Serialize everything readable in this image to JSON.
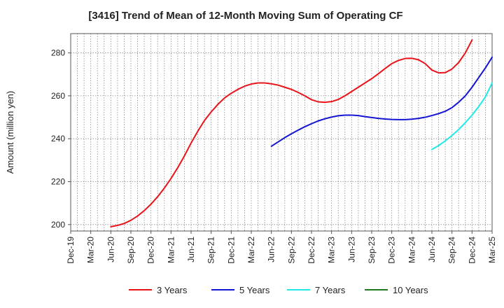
{
  "chart_data": {
    "type": "line",
    "title": "[3416]  Trend of Mean of 12-Month Moving Sum of Operating CF",
    "xlabel": "",
    "ylabel": "Amount (million yen)",
    "ylim": [
      197,
      289
    ],
    "yticks": [
      200,
      220,
      240,
      260,
      280
    ],
    "xticks": [
      "Dec-19",
      "Mar-20",
      "Jun-20",
      "Sep-20",
      "Dec-20",
      "Mar-21",
      "Jun-21",
      "Sep-21",
      "Dec-21",
      "Mar-22",
      "Jun-22",
      "Sep-22",
      "Dec-22",
      "Mar-23",
      "Jun-23",
      "Sep-23",
      "Dec-23",
      "Mar-24",
      "Jun-24",
      "Sep-24",
      "Dec-24",
      "Mar-25"
    ],
    "grid": true,
    "legend_position": "bottom",
    "series": [
      {
        "name": "3 Years",
        "color": "#e8141a",
        "points": [
          [
            6,
            199
          ],
          [
            7,
            199.6
          ],
          [
            8,
            200.5
          ],
          [
            9,
            202
          ],
          [
            10,
            204
          ],
          [
            11,
            206.5
          ],
          [
            12,
            209.5
          ],
          [
            13,
            213
          ],
          [
            14,
            217
          ],
          [
            15,
            221.5
          ],
          [
            16,
            226.5
          ],
          [
            17,
            232
          ],
          [
            18,
            238
          ],
          [
            19,
            243.5
          ],
          [
            20,
            248.5
          ],
          [
            21,
            252.5
          ],
          [
            22,
            256
          ],
          [
            23,
            259
          ],
          [
            24,
            261.2
          ],
          [
            25,
            263
          ],
          [
            26,
            264.5
          ],
          [
            27,
            265.5
          ],
          [
            28,
            266
          ],
          [
            29,
            266
          ],
          [
            30,
            265.6
          ],
          [
            31,
            265
          ],
          [
            32,
            264
          ],
          [
            33,
            263
          ],
          [
            34,
            261.6
          ],
          [
            35,
            260
          ],
          [
            36,
            258.2
          ],
          [
            37,
            257.2
          ],
          [
            38,
            257
          ],
          [
            39,
            257.3
          ],
          [
            40,
            258.3
          ],
          [
            41,
            260
          ],
          [
            42,
            262
          ],
          [
            43,
            264
          ],
          [
            44,
            266
          ],
          [
            45,
            268
          ],
          [
            46,
            270.3
          ],
          [
            47,
            272.7
          ],
          [
            48,
            275
          ],
          [
            49,
            276.5
          ],
          [
            50,
            277.4
          ],
          [
            51,
            277.5
          ],
          [
            52,
            276.8
          ],
          [
            53,
            275
          ],
          [
            54,
            272
          ],
          [
            55,
            270.7
          ],
          [
            56,
            270.8
          ],
          [
            57,
            272.5
          ],
          [
            58,
            275.5
          ],
          [
            59,
            280
          ],
          [
            60,
            286
          ]
        ]
      },
      {
        "name": "5 Years",
        "color": "#1414d2",
        "points": [
          [
            30,
            236.5
          ],
          [
            31,
            238.5
          ],
          [
            32,
            240.5
          ],
          [
            33,
            242.3
          ],
          [
            34,
            244
          ],
          [
            35,
            245.6
          ],
          [
            36,
            247
          ],
          [
            37,
            248.3
          ],
          [
            38,
            249.3
          ],
          [
            39,
            250.1
          ],
          [
            40,
            250.7
          ],
          [
            41,
            251
          ],
          [
            42,
            251
          ],
          [
            43,
            250.8
          ],
          [
            44,
            250.3
          ],
          [
            45,
            249.9
          ],
          [
            46,
            249.5
          ],
          [
            47,
            249.2
          ],
          [
            48,
            249
          ],
          [
            49,
            248.9
          ],
          [
            50,
            248.9
          ],
          [
            51,
            249.1
          ],
          [
            52,
            249.5
          ],
          [
            53,
            250
          ],
          [
            54,
            250.8
          ],
          [
            55,
            251.7
          ],
          [
            56,
            252.8
          ],
          [
            57,
            254.5
          ],
          [
            58,
            257
          ],
          [
            59,
            260
          ],
          [
            60,
            264
          ],
          [
            61,
            268.5
          ],
          [
            62,
            273
          ],
          [
            63,
            278
          ]
        ]
      },
      {
        "name": "7 Years",
        "color": "#22e8e8",
        "points": [
          [
            54,
            235
          ],
          [
            55,
            236.8
          ],
          [
            56,
            239
          ],
          [
            57,
            241.5
          ],
          [
            58,
            244.3
          ],
          [
            59,
            247.5
          ],
          [
            60,
            251
          ],
          [
            61,
            255
          ],
          [
            62,
            259.5
          ],
          [
            63,
            266
          ]
        ]
      },
      {
        "name": "10 Years",
        "color": "#1f7a1f",
        "points": []
      }
    ]
  }
}
